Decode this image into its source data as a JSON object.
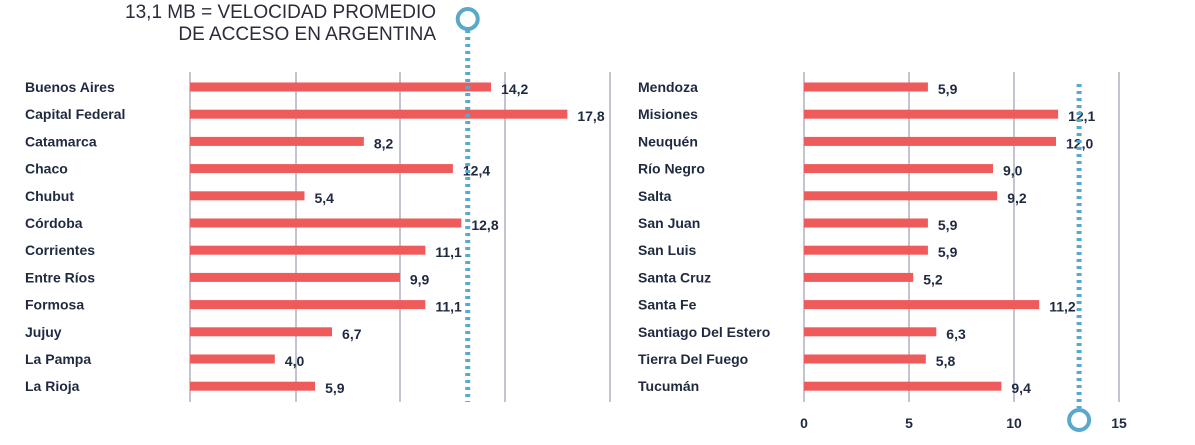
{
  "annotation": {
    "line1": "13,1 MB = VELOCIDAD PROMEDIO",
    "line2": "DE ACCESO EN ARGENTINA"
  },
  "colors": {
    "bar": "#ef5a5a",
    "grid": "#8a8aa0",
    "reference": "#5aa8cc",
    "text": "#1f2a40"
  },
  "chart_data": [
    {
      "type": "bar",
      "orientation": "horizontal",
      "xlim": [
        0,
        20
      ],
      "reference_value": 13.1,
      "categories": [
        "Buenos Aires",
        "Capital Federal",
        "Catamarca",
        "Chaco",
        "Chubut",
        "Córdoba",
        "Corrientes",
        "Entre Ríos",
        "Formosa",
        "Jujuy",
        "La Pampa",
        "La Rioja"
      ],
      "values": [
        14.2,
        17.8,
        8.2,
        12.4,
        5.4,
        12.8,
        11.1,
        9.9,
        11.1,
        6.7,
        4.0,
        5.9
      ],
      "value_labels": [
        "14,2",
        "17,8",
        "8,2",
        "12,4",
        "5,4",
        "12,8",
        "11,1",
        "9,9",
        "11,1",
        "6,7",
        "4,0",
        "5,9"
      ]
    },
    {
      "type": "bar",
      "orientation": "horizontal",
      "xlim": [
        0,
        15
      ],
      "xticks": [
        0,
        5,
        10,
        15
      ],
      "reference_value": 13.1,
      "categories": [
        "Mendoza",
        "Misiones",
        "Neuquén",
        "Río Negro",
        "Salta",
        "San Juan",
        "San Luis",
        "Santa Cruz",
        "Santa Fe",
        "Santiago Del Estero",
        "Tierra Del Fuego",
        "Tucumán"
      ],
      "values": [
        5.9,
        12.1,
        12.0,
        9.0,
        9.2,
        5.9,
        5.9,
        5.2,
        11.2,
        6.3,
        5.8,
        9.4
      ],
      "value_labels": [
        "5,9",
        "12,1",
        "12,0",
        "9,0",
        "9,2",
        "5,9",
        "5,9",
        "5,2",
        "11,2",
        "6,3",
        "5,8",
        "9,4"
      ]
    }
  ]
}
